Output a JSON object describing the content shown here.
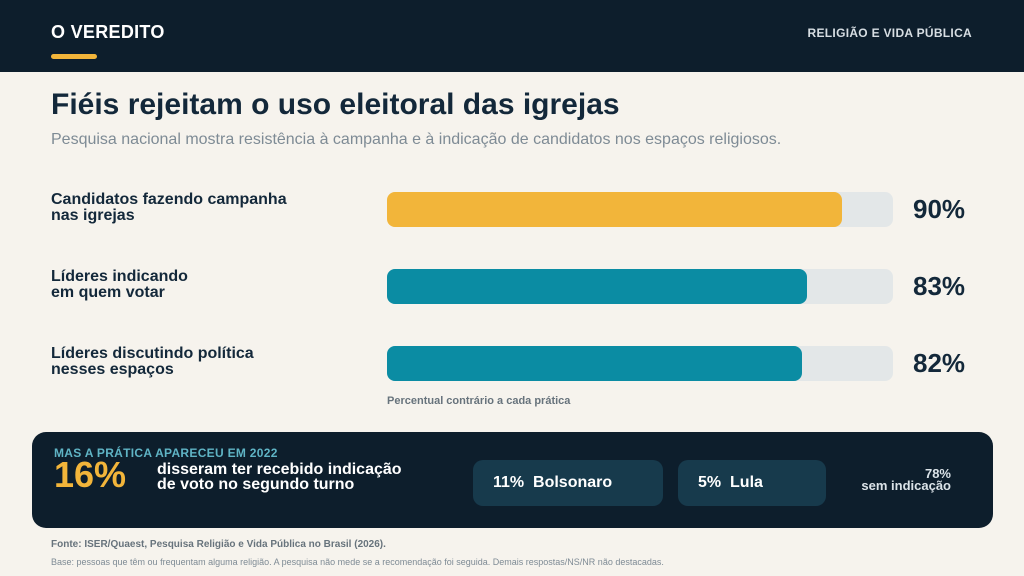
{
  "header": {
    "brand": "O VEREDITO",
    "section": "RELIGIÃO E VIDA PÚBLICA"
  },
  "title": "Fiéis rejeitam o uso eleitoral das igrejas",
  "subtitle": "Pesquisa nacional mostra resistência à campanha e à indicação de candidatos nos espaços religiosos.",
  "colors": {
    "header_bg": "#0d1e2c",
    "accent": "#f2b53a",
    "bar_primary": "#f2b53a",
    "bar_secondary": "#0b8ca3",
    "track": "#e3e7e8"
  },
  "chart_data": {
    "type": "bar",
    "orientation": "horizontal",
    "categories": [
      [
        "Candidatos fazendo campanha",
        "nas igrejas"
      ],
      [
        "Líderes indicando",
        "em quem votar"
      ],
      [
        "Líderes discutindo política",
        "nesses espaços"
      ]
    ],
    "values": [
      90,
      83,
      82
    ],
    "value_labels": [
      "90%",
      "83%",
      "82%"
    ],
    "bar_colors": [
      "#f2b53a",
      "#0b8ca3",
      "#0b8ca3"
    ],
    "xlim": [
      0,
      100
    ],
    "xlabel": "Percentual contrário a cada prática"
  },
  "panel": {
    "kicker": "MAS A PRÁTICA APARECEU EM 2022",
    "big_value": "16%",
    "description_line1": "disseram ter recebido indicação",
    "description_line2": "de voto no segundo turno",
    "breakdown": [
      {
        "value": "11%",
        "label": "Bolsonaro"
      },
      {
        "value": "5%",
        "label": "Lula"
      }
    ],
    "rest_value": "78%",
    "rest_label": "sem indicação"
  },
  "footer": {
    "source": "Fonte: ISER/Quaest, Pesquisa Religião e Vida Pública no Brasil (2026).",
    "note": "Base: pessoas que têm ou frequentam alguma religião. A pesquisa não mede se a recomendação foi seguida. Demais respostas/NS/NR não destacadas."
  }
}
